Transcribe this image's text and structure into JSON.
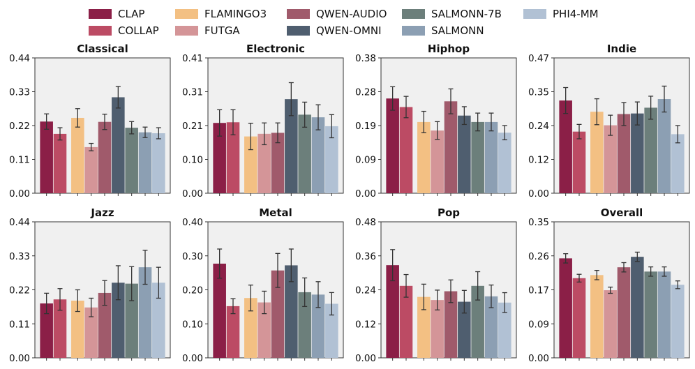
{
  "models": [
    {
      "name": "CLAP",
      "color": "#8b1f47"
    },
    {
      "name": "COLLAP",
      "color": "#bc4b64"
    },
    {
      "name": "FLAMINGO3",
      "color": "#f3c083"
    },
    {
      "name": "FUTGA",
      "color": "#d49598"
    },
    {
      "name": "QWEN-AUDIO",
      "color": "#a05a6b"
    },
    {
      "name": "QWEN-OMNI",
      "color": "#4f5e6f"
    },
    {
      "name": "SALMONN-7B",
      "color": "#6c7f7b"
    },
    {
      "name": "SALMONN",
      "color": "#8c9fb3"
    },
    {
      "name": "PHI4-MM",
      "color": "#b1c1d4"
    }
  ],
  "chart_data": [
    {
      "type": "bar",
      "title": "Classical",
      "ylim": [
        0,
        0.44
      ],
      "yticks": [
        "0.00",
        "0.11",
        "0.22",
        "0.33",
        "0.44"
      ],
      "values": [
        0.233,
        0.193,
        0.245,
        0.15,
        0.232,
        0.312,
        0.213,
        0.198,
        0.195
      ],
      "errors": [
        0.025,
        0.02,
        0.03,
        0.012,
        0.025,
        0.035,
        0.02,
        0.017,
        0.018
      ]
    },
    {
      "type": "bar",
      "title": "Electronic",
      "ylim": [
        0,
        0.41
      ],
      "yticks": [
        "0.00",
        "0.10",
        "0.21",
        "0.31",
        "0.41"
      ],
      "values": [
        0.213,
        0.215,
        0.172,
        0.18,
        0.183,
        0.285,
        0.238,
        0.23,
        0.203
      ],
      "errors": [
        0.04,
        0.038,
        0.04,
        0.033,
        0.03,
        0.05,
        0.038,
        0.038,
        0.035
      ]
    },
    {
      "type": "bar",
      "title": "Hiphop",
      "ylim": [
        0,
        0.38
      ],
      "yticks": [
        "0.00",
        "0.09",
        "0.19",
        "0.28",
        "0.38"
      ],
      "values": [
        0.266,
        0.242,
        0.2,
        0.176,
        0.258,
        0.218,
        0.2,
        0.2,
        0.17
      ],
      "errors": [
        0.033,
        0.03,
        0.03,
        0.025,
        0.035,
        0.025,
        0.025,
        0.025,
        0.02
      ]
    },
    {
      "type": "bar",
      "title": "Indie",
      "ylim": [
        0,
        0.47
      ],
      "yticks": [
        "0.00",
        "0.12",
        "0.24",
        "0.35",
        "0.47"
      ],
      "values": [
        0.322,
        0.214,
        0.283,
        0.236,
        0.275,
        0.277,
        0.297,
        0.327,
        0.205
      ],
      "errors": [
        0.045,
        0.025,
        0.045,
        0.035,
        0.04,
        0.04,
        0.04,
        0.045,
        0.03
      ]
    },
    {
      "type": "bar",
      "title": "Jazz",
      "ylim": [
        0,
        0.44
      ],
      "yticks": [
        "0.00",
        "0.11",
        "0.22",
        "0.33",
        "0.44"
      ],
      "values": [
        0.176,
        0.189,
        0.185,
        0.163,
        0.21,
        0.243,
        0.24,
        0.293,
        0.243
      ],
      "errors": [
        0.033,
        0.035,
        0.035,
        0.03,
        0.04,
        0.055,
        0.055,
        0.055,
        0.05
      ]
    },
    {
      "type": "bar",
      "title": "Metal",
      "ylim": [
        0,
        0.4
      ],
      "yticks": [
        "0.00",
        "0.10",
        "0.20",
        "0.30",
        "0.40"
      ],
      "values": [
        0.277,
        0.152,
        0.176,
        0.163,
        0.257,
        0.272,
        0.193,
        0.186,
        0.159
      ],
      "errors": [
        0.043,
        0.022,
        0.038,
        0.033,
        0.05,
        0.048,
        0.042,
        0.038,
        0.033
      ]
    },
    {
      "type": "bar",
      "title": "Pop",
      "ylim": [
        0,
        0.48
      ],
      "yticks": [
        "0.00",
        "0.12",
        "0.24",
        "0.36",
        "0.48"
      ],
      "values": [
        0.327,
        0.254,
        0.215,
        0.204,
        0.235,
        0.198,
        0.254,
        0.217,
        0.195
      ],
      "errors": [
        0.055,
        0.04,
        0.045,
        0.035,
        0.04,
        0.04,
        0.05,
        0.04,
        0.035
      ]
    },
    {
      "type": "bar",
      "title": "Overall",
      "ylim": [
        0,
        0.35
      ],
      "yticks": [
        "0.00",
        "0.09",
        "0.17",
        "0.26",
        "0.35"
      ],
      "values": [
        0.256,
        0.205,
        0.213,
        0.174,
        0.233,
        0.26,
        0.222,
        0.222,
        0.188
      ],
      "errors": [
        0.012,
        0.01,
        0.012,
        0.008,
        0.012,
        0.012,
        0.012,
        0.012,
        0.01
      ]
    }
  ]
}
